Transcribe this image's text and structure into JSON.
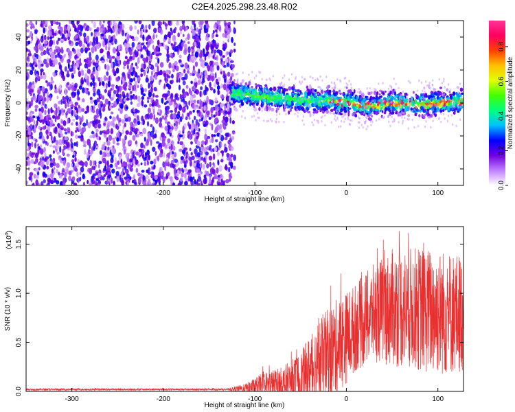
{
  "title": "C2E4.2025.298.23.48.R02",
  "chart_data": [
    {
      "type": "heatmap",
      "name": "spectrogram",
      "xlabel": "Height of straight line (km)",
      "ylabel": "Frequency (Hz)",
      "xlim": [
        -350,
        128
      ],
      "ylim": [
        -50,
        50
      ],
      "xticks": [
        -300,
        -200,
        -100,
        0,
        100
      ],
      "xtick_labels": [
        "-300",
        "-200",
        "-100",
        "0",
        "100"
      ],
      "yticks": [
        -40,
        -20,
        0,
        20,
        40
      ],
      "ytick_labels": [
        "-40",
        "-20",
        "0",
        "20",
        "40"
      ],
      "noise_region": {
        "x": [
          -350,
          -125
        ],
        "description_free": true
      },
      "signal_band_center": [
        {
          "x": -125,
          "y": 6
        },
        {
          "x": -100,
          "y": 4
        },
        {
          "x": -75,
          "y": 3
        },
        {
          "x": -50,
          "y": 2
        },
        {
          "x": -25,
          "y": 1
        },
        {
          "x": -15,
          "y": 2
        },
        {
          "x": -10,
          "y": 0
        },
        {
          "x": 0,
          "y": 1
        },
        {
          "x": 10,
          "y": -1
        },
        {
          "x": 25,
          "y": -2
        },
        {
          "x": 50,
          "y": 0
        },
        {
          "x": 75,
          "y": -1
        },
        {
          "x": 100,
          "y": 0
        },
        {
          "x": 128,
          "y": 1
        }
      ],
      "colorbar": {
        "label": "Normalized spectral amplitude",
        "range": [
          0.0,
          0.95
        ],
        "ticks": [
          0.0,
          0.2,
          0.4,
          0.6,
          0.8
        ],
        "tick_labels": [
          "0.0",
          "0.2",
          "0.4",
          "0.6",
          "0.8"
        ],
        "colors": [
          "#ffffff",
          "#c080ff",
          "#7000e0",
          "#0000ff",
          "#00c0ff",
          "#00ff80",
          "#40ff00",
          "#e0ff00",
          "#ffc000",
          "#ff4000",
          "#ff0060",
          "#ff3399"
        ]
      }
    },
    {
      "type": "line",
      "name": "snr",
      "xlabel": "Height of straight line (km)",
      "ylabel": "SNR (10 * v/v)",
      "exponent_label_base": "(x10",
      "exponent_label_power": "4",
      "exponent_label_close": ")",
      "xlim": [
        -350,
        128
      ],
      "ylim": [
        0.0,
        1.68
      ],
      "xticks": [
        -300,
        -200,
        -100,
        0,
        100
      ],
      "xtick_labels": [
        "-300",
        "-200",
        "-100",
        "0",
        "100"
      ],
      "yticks": [
        0.0,
        0.5,
        1.0,
        1.5
      ],
      "ytick_labels": [
        "0.0",
        "0.5",
        "1.0",
        "1.5"
      ],
      "series": [
        {
          "name": "SNR",
          "color": "#e83030",
          "envelope": [
            {
              "x": -350,
              "base": 0.02,
              "amp": 0.01
            },
            {
              "x": -130,
              "base": 0.02,
              "amp": 0.01
            },
            {
              "x": -110,
              "base": 0.03,
              "amp": 0.05
            },
            {
              "x": -90,
              "base": 0.06,
              "amp": 0.14
            },
            {
              "x": -70,
              "base": 0.07,
              "amp": 0.18
            },
            {
              "x": -50,
              "base": 0.12,
              "amp": 0.28
            },
            {
              "x": -30,
              "base": 0.3,
              "amp": 0.45
            },
            {
              "x": -10,
              "base": 0.45,
              "amp": 0.5
            },
            {
              "x": 10,
              "base": 0.65,
              "amp": 0.45
            },
            {
              "x": 30,
              "base": 0.8,
              "amp": 0.5
            },
            {
              "x": 50,
              "base": 0.85,
              "amp": 0.6
            },
            {
              "x": 70,
              "base": 0.85,
              "amp": 0.62
            },
            {
              "x": 90,
              "base": 0.82,
              "amp": 0.65
            },
            {
              "x": 110,
              "base": 0.8,
              "amp": 0.65
            },
            {
              "x": 128,
              "base": 0.8,
              "amp": 0.6
            }
          ]
        }
      ]
    }
  ]
}
